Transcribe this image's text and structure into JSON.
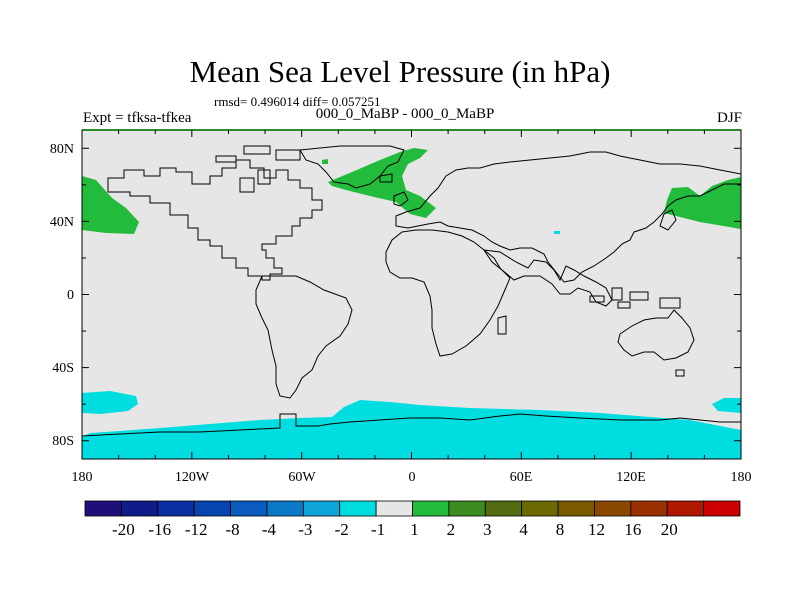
{
  "header": {
    "title": "Mean Sea Level Pressure (in hPa)",
    "stats": "rmsd= 0.496014 diff= 0.057251",
    "experiment": "Expt = tfksa-tfkea",
    "period": "000_0_MaBP - 000_0_MaBP",
    "season": "DJF"
  },
  "axes": {
    "y_ticks": [
      "80N",
      "40N",
      "0",
      "40S",
      "80S"
    ],
    "x_ticks": [
      "180",
      "120W",
      "60W",
      "0",
      "60E",
      "120E",
      "180"
    ]
  },
  "colorbar": {
    "colors": [
      "#1f0f78",
      "#101c8a",
      "#0a2fa0",
      "#0645b0",
      "#0a5ac0",
      "#0b78c8",
      "#0ea6d8",
      "#00dde0",
      "#e6e6e6",
      "#22bb3b",
      "#3c8c22",
      "#556b12",
      "#6b6a00",
      "#7a5a00",
      "#8a4800",
      "#9a3000",
      "#b01800",
      "#cc0000"
    ],
    "labels": [
      "-20",
      "-16",
      "-12",
      "-8",
      "-4",
      "-3",
      "-2",
      "-1",
      "1",
      "2",
      "3",
      "4",
      "8",
      "12",
      "16",
      "20"
    ]
  },
  "style": {
    "background_fill": "#e6e6e6",
    "positive_fill": "#22bb3b",
    "negative_fill": "#00dde0",
    "coast_color": "#000000",
    "frame_top_color": "#2b8a2b"
  },
  "map_data": {
    "projection": "cylindrical-equidistant",
    "lon_range": [
      -180,
      180
    ],
    "lat_range": [
      -90,
      90
    ],
    "positive_regions": [
      "North Pacific (west, 30N-60N)",
      "North Pacific (east, 30N-60N)",
      "North Atlantic / Greenland Sea"
    ],
    "negative_regions": [
      "Southern Ocean band (~60S-90S)",
      "South Pacific (~55S)"
    ]
  }
}
